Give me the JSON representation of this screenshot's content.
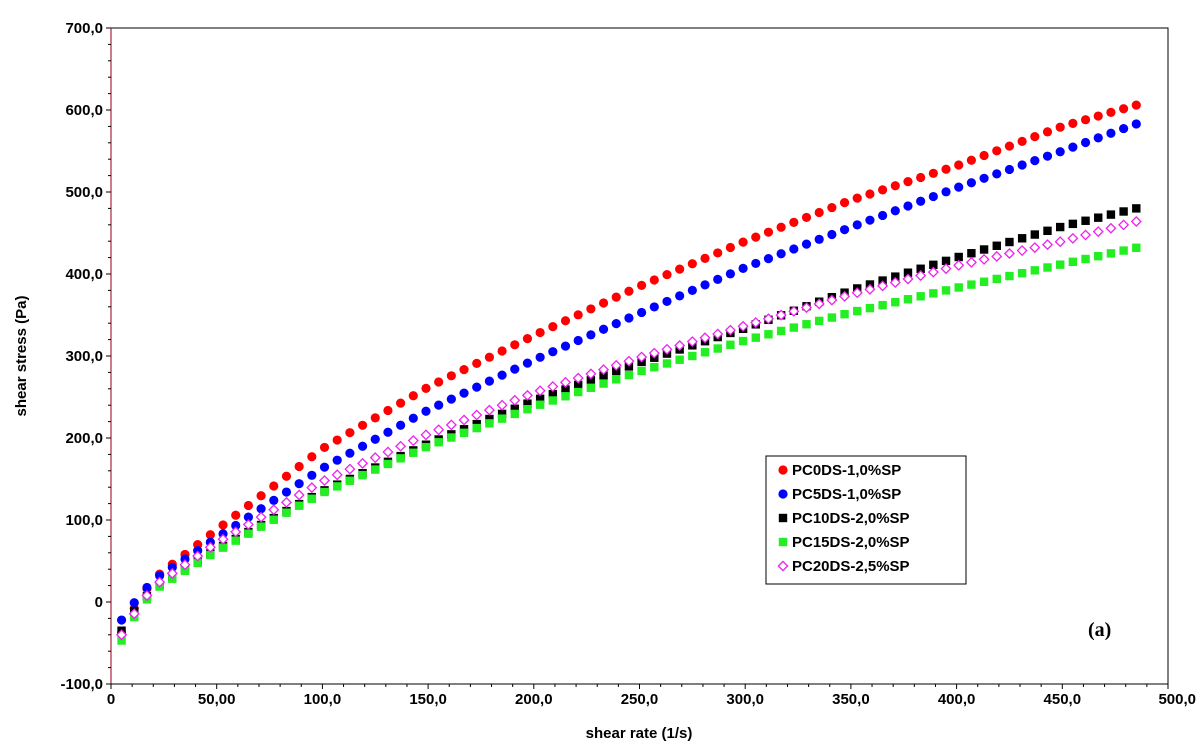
{
  "chart_data": {
    "type": "scatter",
    "title": "",
    "xlabel": "shear rate (1/s)",
    "ylabel": "shear stress (Pa)",
    "xlim": [
      0,
      500
    ],
    "ylim": [
      -100,
      700
    ],
    "x_ticks": [
      {
        "value": 0,
        "label": "0"
      },
      {
        "value": 50,
        "label": "50,00"
      },
      {
        "value": 100,
        "label": "100,0"
      },
      {
        "value": 150,
        "label": "150,0"
      },
      {
        "value": 200,
        "label": "200,0"
      },
      {
        "value": 250,
        "label": "250,0"
      },
      {
        "value": 300,
        "label": "300,0"
      },
      {
        "value": 350,
        "label": "350,0"
      },
      {
        "value": 400,
        "label": "400,0"
      },
      {
        "value": 450,
        "label": "450,0"
      },
      {
        "value": 500,
        "label": "500,0"
      }
    ],
    "y_ticks": [
      {
        "value": -100,
        "label": "-100,0"
      },
      {
        "value": 0,
        "label": "0"
      },
      {
        "value": 100,
        "label": "100,0"
      },
      {
        "value": 200,
        "label": "200,0"
      },
      {
        "value": 300,
        "label": "300,0"
      },
      {
        "value": 400,
        "label": "400,0"
      },
      {
        "value": 500,
        "label": "500,0"
      },
      {
        "value": 600,
        "label": "600,0"
      },
      {
        "value": 700,
        "label": "700,0"
      }
    ],
    "grid": false,
    "legend_position": "center-right",
    "annotation": "(a)",
    "x_start": 5,
    "x_step": 6,
    "points_per_series": 81,
    "series": [
      {
        "name": "PC0DS-1,0%SP",
        "color": "#ff0000",
        "marker": "circle",
        "y_at": {
          "5": -38,
          "10": -12,
          "20": 28,
          "50": 88,
          "100": 187,
          "150": 262,
          "200": 325,
          "250": 385,
          "300": 440,
          "350": 490,
          "400": 532,
          "450": 580,
          "485": 606
        }
      },
      {
        "name": "PC5DS-1,0%SP",
        "color": "#0000ff",
        "marker": "circle",
        "y_at": {
          "5": -22,
          "10": -4,
          "20": 27,
          "50": 78,
          "100": 163,
          "150": 234,
          "200": 295,
          "250": 352,
          "300": 408,
          "350": 457,
          "400": 505,
          "450": 550,
          "485": 583
        }
      },
      {
        "name": "PC10DS-2,0%SP",
        "color": "#000000",
        "marker": "square",
        "y_at": {
          "5": -35,
          "10": -14,
          "20": 16,
          "50": 64,
          "100": 135,
          "150": 193,
          "200": 245,
          "250": 292,
          "300": 334,
          "350": 380,
          "400": 420,
          "450": 458,
          "485": 480
        }
      },
      {
        "name": "PC15DS-2,0%SP",
        "color": "#22ee22",
        "marker": "square",
        "y_at": {
          "5": -47,
          "10": -22,
          "20": 14,
          "50": 62,
          "100": 133,
          "150": 190,
          "200": 238,
          "250": 281,
          "300": 319,
          "350": 353,
          "400": 383,
          "450": 412,
          "485": 432
        }
      },
      {
        "name": "PC20DS-2,5%SP",
        "color": "#ee22ee",
        "marker": "diamond-open",
        "y_at": {
          "5": -40,
          "10": -18,
          "20": 19,
          "50": 72,
          "100": 147,
          "150": 205,
          "200": 255,
          "250": 298,
          "300": 337,
          "350": 375,
          "400": 410,
          "450": 440,
          "485": 464
        }
      }
    ]
  }
}
